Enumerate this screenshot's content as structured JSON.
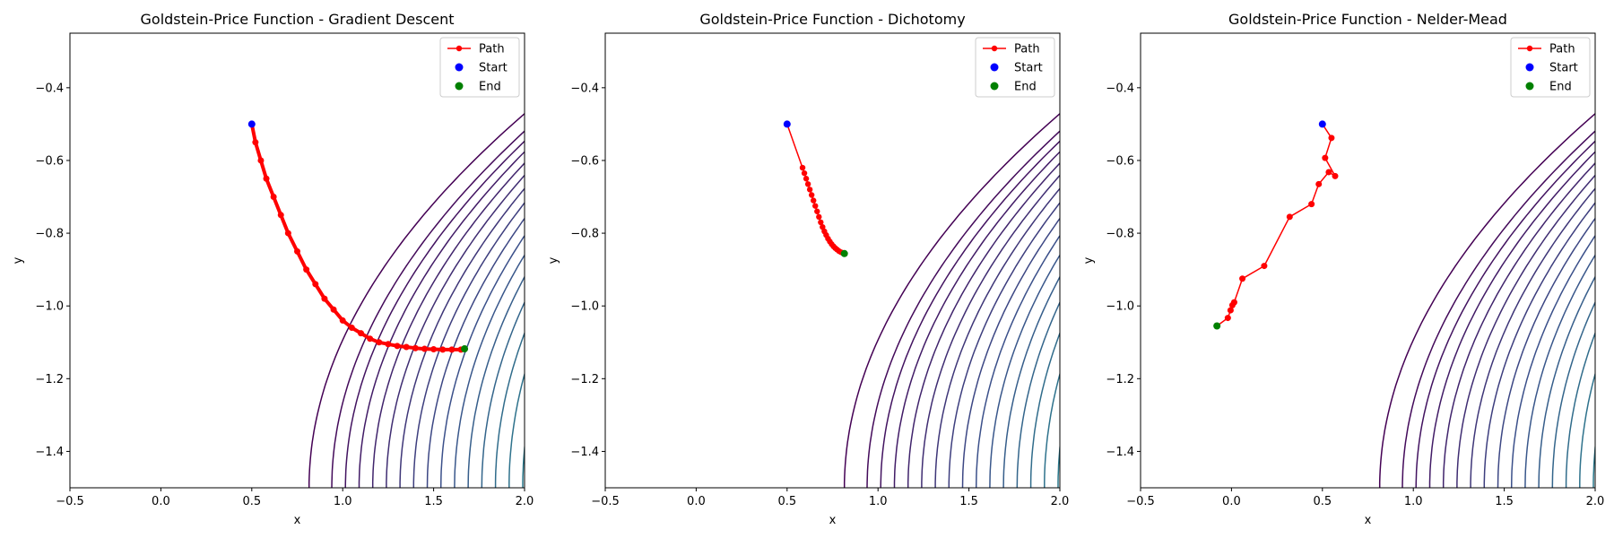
{
  "chart_data": [
    {
      "type": "line",
      "title": "Goldstein-Price Function - Gradient Descent",
      "xlabel": "x",
      "ylabel": "y",
      "xlim": [
        -0.5,
        2.0
      ],
      "ylim": [
        -1.5,
        -0.25
      ],
      "xticks": [
        "−0.5",
        "0.0",
        "0.5",
        "1.0",
        "1.5",
        "2.0"
      ],
      "xtick_values": [
        -0.5,
        0.0,
        0.5,
        1.0,
        1.5,
        2.0
      ],
      "yticks": [
        "−1.4",
        "−1.2",
        "−1.0",
        "−0.8",
        "−0.6",
        "−0.4"
      ],
      "ytick_values": [
        -1.4,
        -1.2,
        -1.0,
        -0.8,
        -0.6,
        -0.4
      ],
      "grid": false,
      "legend": {
        "position": "top-right",
        "entries": [
          "Path",
          "Start",
          "End"
        ]
      },
      "colors": {
        "path": "#ff0000",
        "start": "#0000ff",
        "end": "#008000"
      },
      "background": "contour",
      "series": [
        {
          "name": "Path",
          "x": [
            0.5,
            0.52,
            0.55,
            0.58,
            0.62,
            0.66,
            0.7,
            0.75,
            0.8,
            0.85,
            0.9,
            0.95,
            1.0,
            1.05,
            1.1,
            1.15,
            1.2,
            1.25,
            1.3,
            1.35,
            1.4,
            1.45,
            1.5,
            1.55,
            1.6,
            1.65,
            1.67
          ],
          "y": [
            -0.5,
            -0.55,
            -0.6,
            -0.65,
            -0.7,
            -0.75,
            -0.8,
            -0.85,
            -0.9,
            -0.94,
            -0.98,
            -1.01,
            -1.04,
            -1.06,
            -1.075,
            -1.09,
            -1.1,
            -1.105,
            -1.11,
            -1.113,
            -1.116,
            -1.118,
            -1.119,
            -1.12,
            -1.12,
            -1.12,
            -1.118
          ]
        }
      ],
      "start": {
        "name": "Start",
        "x": 0.5,
        "y": -0.5
      },
      "end": {
        "name": "End",
        "x": 1.67,
        "y": -1.118
      }
    },
    {
      "type": "line",
      "title": "Goldstein-Price Function - Dichotomy",
      "xlabel": "x",
      "ylabel": "y",
      "xlim": [
        -0.5,
        2.0
      ],
      "ylim": [
        -1.5,
        -0.25
      ],
      "xticks": [
        "−0.5",
        "0.0",
        "0.5",
        "1.0",
        "1.5",
        "2.0"
      ],
      "xtick_values": [
        -0.5,
        0.0,
        0.5,
        1.0,
        1.5,
        2.0
      ],
      "yticks": [
        "−1.4",
        "−1.2",
        "−1.0",
        "−0.8",
        "−0.6",
        "−0.4"
      ],
      "ytick_values": [
        -1.4,
        -1.2,
        -1.0,
        -0.8,
        -0.6,
        -0.4
      ],
      "grid": false,
      "legend": {
        "position": "top-right",
        "entries": [
          "Path",
          "Start",
          "End"
        ]
      },
      "colors": {
        "path": "#ff0000",
        "start": "#0000ff",
        "end": "#008000"
      },
      "background": "contour",
      "series": [
        {
          "name": "Path",
          "x": [
            0.5,
            0.585,
            0.595,
            0.605,
            0.615,
            0.625,
            0.635,
            0.645,
            0.655,
            0.665,
            0.675,
            0.685,
            0.695,
            0.705,
            0.715,
            0.725,
            0.735,
            0.745,
            0.755,
            0.765,
            0.775,
            0.785,
            0.795,
            0.805,
            0.815
          ],
          "y": [
            -0.5,
            -0.62,
            -0.635,
            -0.65,
            -0.665,
            -0.68,
            -0.695,
            -0.71,
            -0.725,
            -0.74,
            -0.755,
            -0.77,
            -0.783,
            -0.795,
            -0.805,
            -0.815,
            -0.823,
            -0.83,
            -0.836,
            -0.841,
            -0.845,
            -0.849,
            -0.852,
            -0.854,
            -0.856
          ]
        }
      ],
      "start": {
        "name": "Start",
        "x": 0.5,
        "y": -0.5
      },
      "end": {
        "name": "End",
        "x": 0.815,
        "y": -0.856
      }
    },
    {
      "type": "line",
      "title": "Goldstein-Price Function - Nelder-Mead",
      "xlabel": "x",
      "ylabel": "y",
      "xlim": [
        -0.5,
        2.0
      ],
      "ylim": [
        -1.5,
        -0.25
      ],
      "xticks": [
        "−0.5",
        "0.0",
        "0.5",
        "1.0",
        "1.5",
        "2.0"
      ],
      "xtick_values": [
        -0.5,
        0.0,
        0.5,
        1.0,
        1.5,
        2.0
      ],
      "yticks": [
        "−1.4",
        "−1.2",
        "−1.0",
        "−0.8",
        "−0.6",
        "−0.4"
      ],
      "ytick_values": [
        -1.4,
        -1.2,
        -1.0,
        -0.8,
        -0.6,
        -0.4
      ],
      "grid": false,
      "legend": {
        "position": "top-right",
        "entries": [
          "Path",
          "Start",
          "End"
        ]
      },
      "colors": {
        "path": "#ff0000",
        "start": "#0000ff",
        "end": "#008000"
      },
      "background": "contour",
      "series": [
        {
          "name": "Path",
          "x": [
            0.5,
            0.55,
            0.515,
            0.57,
            0.535,
            0.48,
            0.44,
            0.32,
            0.18,
            0.06,
            0.015,
            0.005,
            -0.005,
            -0.02,
            -0.08
          ],
          "y": [
            -0.5,
            -0.538,
            -0.593,
            -0.643,
            -0.632,
            -0.665,
            -0.72,
            -0.755,
            -0.89,
            -0.925,
            -0.99,
            -0.998,
            -1.012,
            -1.033,
            -1.055
          ]
        }
      ],
      "start": {
        "name": "Start",
        "x": 0.5,
        "y": -0.5
      },
      "end": {
        "name": "End",
        "x": -0.08,
        "y": -1.055
      }
    }
  ]
}
